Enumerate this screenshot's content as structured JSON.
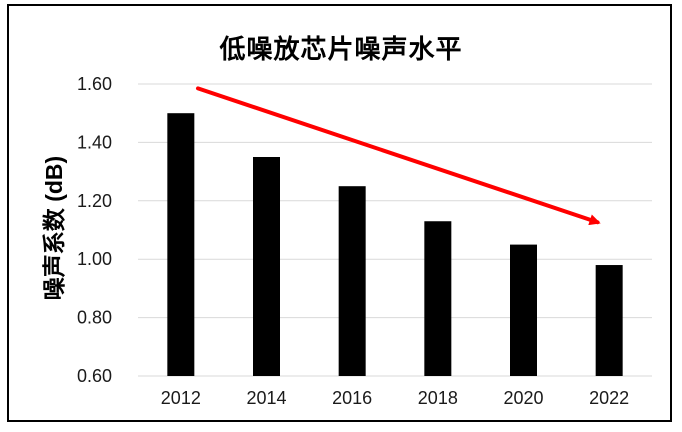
{
  "page": {
    "background": "#ffffff",
    "frame_border_color": "#000000"
  },
  "chart_data": {
    "type": "bar",
    "title": "低噪放芯片噪声水平",
    "xlabel": "",
    "ylabel": "噪声系数 (dB)",
    "categories": [
      "2012",
      "2014",
      "2016",
      "2018",
      "2020",
      "2022"
    ],
    "values": [
      1.5,
      1.35,
      1.25,
      1.13,
      1.05,
      0.98
    ],
    "ylim": [
      0.6,
      1.6
    ],
    "yticks": [
      "0.60",
      "0.80",
      "1.00",
      "1.20",
      "1.40",
      "1.60"
    ],
    "grid": true,
    "legend": "none",
    "bar_color": "#000000",
    "gridline_color": "#d9d9d9",
    "tick_label_color": "#1a1a1a",
    "annotation": {
      "type": "trend-arrow",
      "color": "#ff0000",
      "start": {
        "category_frac": 0.7,
        "value": 1.585
      },
      "end": {
        "category_frac": 5.43,
        "value": 1.12
      }
    }
  }
}
